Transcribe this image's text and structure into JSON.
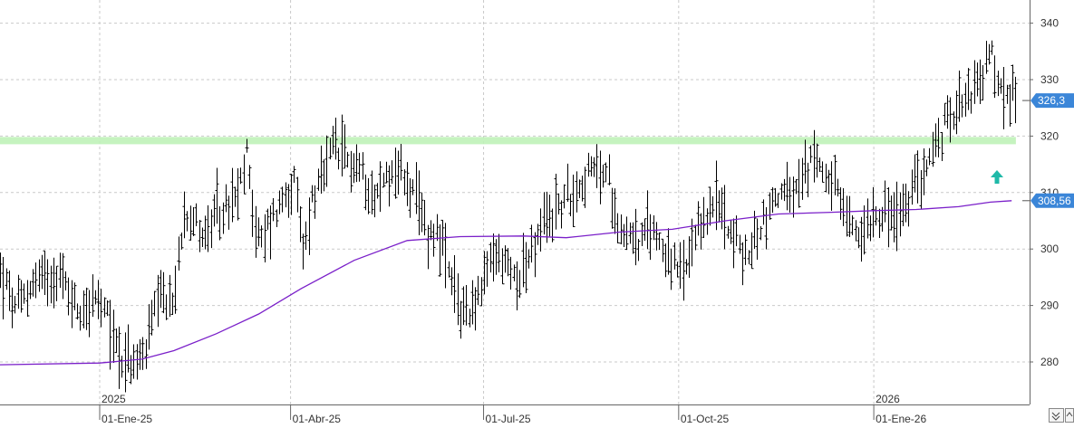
{
  "chart_data": {
    "type": "bar",
    "subtype": "ohlc",
    "ylim": [
      272,
      344
    ],
    "y_ticks": [
      "280",
      "290",
      "300",
      "310",
      "320",
      "330",
      "340"
    ],
    "x_ticks": [
      {
        "t": 0.0,
        "label": "01-Ene-25"
      },
      {
        "t": 90.0,
        "label": "01-Abr-25"
      },
      {
        "t": 181.0,
        "label": "01-Jul-25"
      },
      {
        "t": 273.0,
        "label": "01-Oct-25"
      },
      {
        "t": 365.0,
        "label": "01-Ene-26"
      }
    ],
    "year_labels": [
      {
        "t": 0.0,
        "label": "2025"
      },
      {
        "t": 365.0,
        "label": "2026"
      }
    ],
    "last_price_label": "326,3",
    "last_price": 326.3,
    "ma_label": "308,56",
    "ma_value": 308.56,
    "resistance_level": 319.2,
    "grid": true,
    "series": [
      {
        "kind": "moving_average",
        "color": "#7a1fc9",
        "points": [
          [
            -47,
            279.5
          ],
          [
            0,
            279.8
          ],
          [
            20,
            280.5
          ],
          [
            35,
            282.0
          ],
          [
            55,
            285.0
          ],
          [
            75,
            288.5
          ],
          [
            95,
            293.0
          ],
          [
            120,
            298.0
          ],
          [
            145,
            301.5
          ],
          [
            170,
            302.2
          ],
          [
            200,
            302.3
          ],
          [
            220,
            302.0
          ],
          [
            245,
            303.0
          ],
          [
            270,
            303.5
          ],
          [
            295,
            305.0
          ],
          [
            320,
            306.2
          ],
          [
            345,
            306.5
          ],
          [
            365,
            306.8
          ],
          [
            385,
            307.0
          ],
          [
            405,
            307.5
          ],
          [
            420,
            308.3
          ],
          [
            430,
            308.56
          ]
        ]
      },
      {
        "kind": "ohlc",
        "color": "#000000",
        "anchors": [
          [
            -47,
            296
          ],
          [
            -40,
            289
          ],
          [
            -30,
            295
          ],
          [
            -20,
            296
          ],
          [
            -10,
            289
          ],
          [
            -3,
            291
          ],
          [
            3,
            288
          ],
          [
            10,
            281
          ],
          [
            17,
            279
          ],
          [
            22,
            283
          ],
          [
            25,
            288
          ],
          [
            30,
            291
          ],
          [
            35,
            290
          ],
          [
            38,
            302
          ],
          [
            40,
            308
          ],
          [
            45,
            305
          ],
          [
            50,
            302
          ],
          [
            55,
            306
          ],
          [
            60,
            307
          ],
          [
            65,
            309
          ],
          [
            70,
            318
          ],
          [
            73,
            303
          ],
          [
            76,
            301
          ],
          [
            80,
            305
          ],
          [
            85,
            308
          ],
          [
            88,
            311
          ],
          [
            92,
            311
          ],
          [
            96,
            299
          ],
          [
            100,
            309
          ],
          [
            105,
            312
          ],
          [
            110,
            318
          ],
          [
            115,
            316
          ],
          [
            120,
            315
          ],
          [
            125,
            313
          ],
          [
            130,
            309
          ],
          [
            135,
            313
          ],
          [
            140,
            314
          ],
          [
            143,
            313
          ],
          [
            147,
            310
          ],
          [
            150,
            307
          ],
          [
            155,
            303
          ],
          [
            160,
            303
          ],
          [
            165,
            294
          ],
          [
            170,
            289
          ],
          [
            175,
            290
          ],
          [
            180,
            292
          ],
          [
            185,
            299
          ],
          [
            190,
            298
          ],
          [
            195,
            295
          ],
          [
            200,
            297
          ],
          [
            205,
            300
          ],
          [
            210,
            305
          ],
          [
            215,
            307
          ],
          [
            220,
            309
          ],
          [
            225,
            311
          ],
          [
            230,
            313
          ],
          [
            235,
            314
          ],
          [
            240,
            312
          ],
          [
            245,
            304
          ],
          [
            250,
            303
          ],
          [
            255,
            301
          ],
          [
            260,
            304
          ],
          [
            265,
            301
          ],
          [
            270,
            297
          ],
          [
            275,
            295
          ],
          [
            280,
            300
          ],
          [
            285,
            306
          ],
          [
            290,
            308
          ],
          [
            295,
            306
          ],
          [
            300,
            301
          ],
          [
            305,
            298
          ],
          [
            310,
            303
          ],
          [
            315,
            307
          ],
          [
            320,
            310
          ],
          [
            325,
            309
          ],
          [
            330,
            311
          ],
          [
            335,
            315
          ],
          [
            340,
            316
          ],
          [
            343,
            313
          ],
          [
            347,
            310
          ],
          [
            352,
            305
          ],
          [
            358,
            302
          ],
          [
            365,
            307
          ],
          [
            370,
            307
          ],
          [
            375,
            305
          ],
          [
            380,
            307
          ],
          [
            385,
            312
          ],
          [
            390,
            315
          ],
          [
            395,
            319
          ],
          [
            400,
            323
          ],
          [
            405,
            327
          ],
          [
            410,
            328
          ],
          [
            415,
            329
          ],
          [
            420,
            335
          ],
          [
            423,
            330
          ],
          [
            426,
            327
          ],
          [
            430,
            327
          ],
          [
            432,
            326.3
          ]
        ]
      }
    ]
  }
}
